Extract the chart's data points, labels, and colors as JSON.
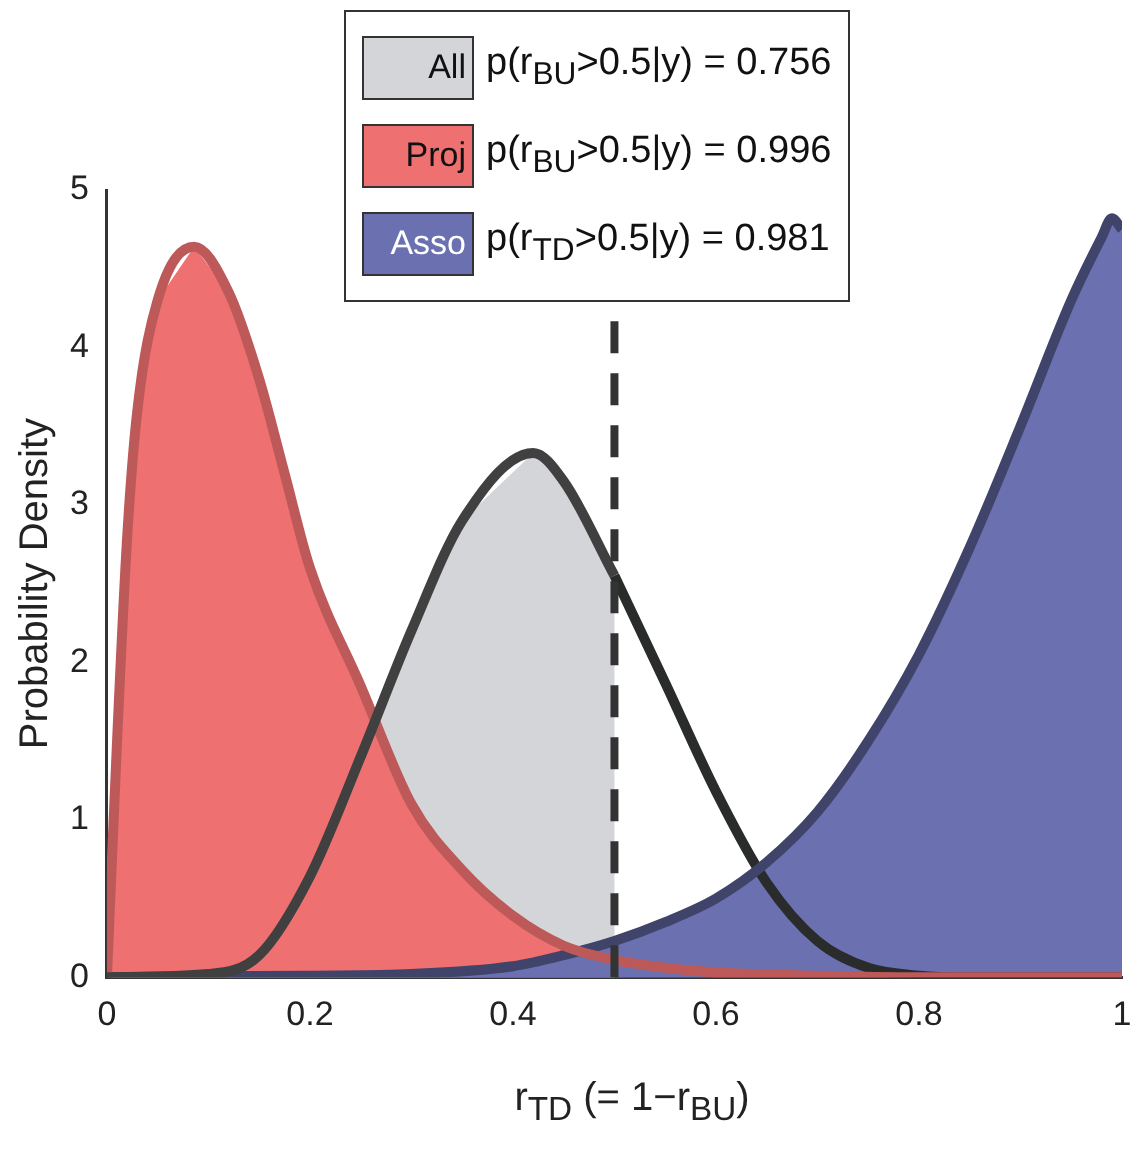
{
  "chart_data": {
    "type": "area",
    "xlabel": "r$_{TD}$ (= 1−r$_{BU}$)",
    "ylabel": "Probability Density",
    "xlim": [
      0,
      1
    ],
    "ylim": [
      0,
      5
    ],
    "xticks": [
      0,
      0.2,
      0.4,
      0.6,
      0.8,
      1
    ],
    "yticks": [
      0,
      1,
      2,
      3,
      4,
      5
    ],
    "grid": false,
    "legend": "top",
    "annotations": [
      "p(r$_{BU}$>0.5|y) = 0.756",
      "p(r$_{BU}$>0.5|y) = 0.996",
      "p(r$_{TD}$>0.5|y) = 0.981"
    ],
    "ref_lines": [
      {
        "axis": "x",
        "value": 0.5,
        "color": "#333333",
        "line_style": "dashed"
      }
    ],
    "series": [
      {
        "name": "All",
        "color": "#d3d5d8",
        "x": [
          0,
          0.1,
          0.15,
          0.2,
          0.25,
          0.3,
          0.35,
          0.42,
          0.45,
          0.5
        ],
        "values": [
          0,
          0.02,
          0.14,
          0.64,
          1.4,
          2.2,
          2.9,
          3.33,
          3.15,
          2.55
        ]
      },
      {
        "name": "Proj",
        "color": "#ee7070",
        "x": [
          0,
          0.01,
          0.02,
          0.03,
          0.05,
          0.086,
          0.12,
          0.15,
          0.175,
          0.2,
          0.25,
          0.3,
          0.35,
          0.4,
          0.45,
          0.5,
          0.55,
          0.6,
          0.7,
          0.8,
          1
        ],
        "values": [
          0,
          1.5,
          2.8,
          3.6,
          4.3,
          4.64,
          4.35,
          3.8,
          3.2,
          2.6,
          1.85,
          1.1,
          0.68,
          0.39,
          0.2,
          0.11,
          0.06,
          0.03,
          0.01,
          0,
          0
        ]
      },
      {
        "name": "Asso",
        "color": "#6a70b0",
        "x": [
          0,
          0.2,
          0.3,
          0.4,
          0.45,
          0.5,
          0.55,
          0.6,
          0.65,
          0.7,
          0.75,
          0.8,
          0.85,
          0.9,
          0.95,
          0.98,
          0.99,
          1
        ],
        "values": [
          0,
          0.01,
          0.02,
          0.07,
          0.14,
          0.23,
          0.35,
          0.5,
          0.73,
          1.05,
          1.5,
          2.05,
          2.73,
          3.5,
          4.3,
          4.7,
          4.82,
          4.75
        ]
      },
      {
        "type": "line",
        "color": "#2a2b2b",
        "x": [
          0.5,
          0.55,
          0.6,
          0.65,
          0.7,
          0.75,
          0.8,
          0.85,
          1
        ],
        "values": [
          2.55,
          1.87,
          1.18,
          0.6,
          0.23,
          0.06,
          0.01,
          0,
          0
        ]
      }
    ]
  }
}
